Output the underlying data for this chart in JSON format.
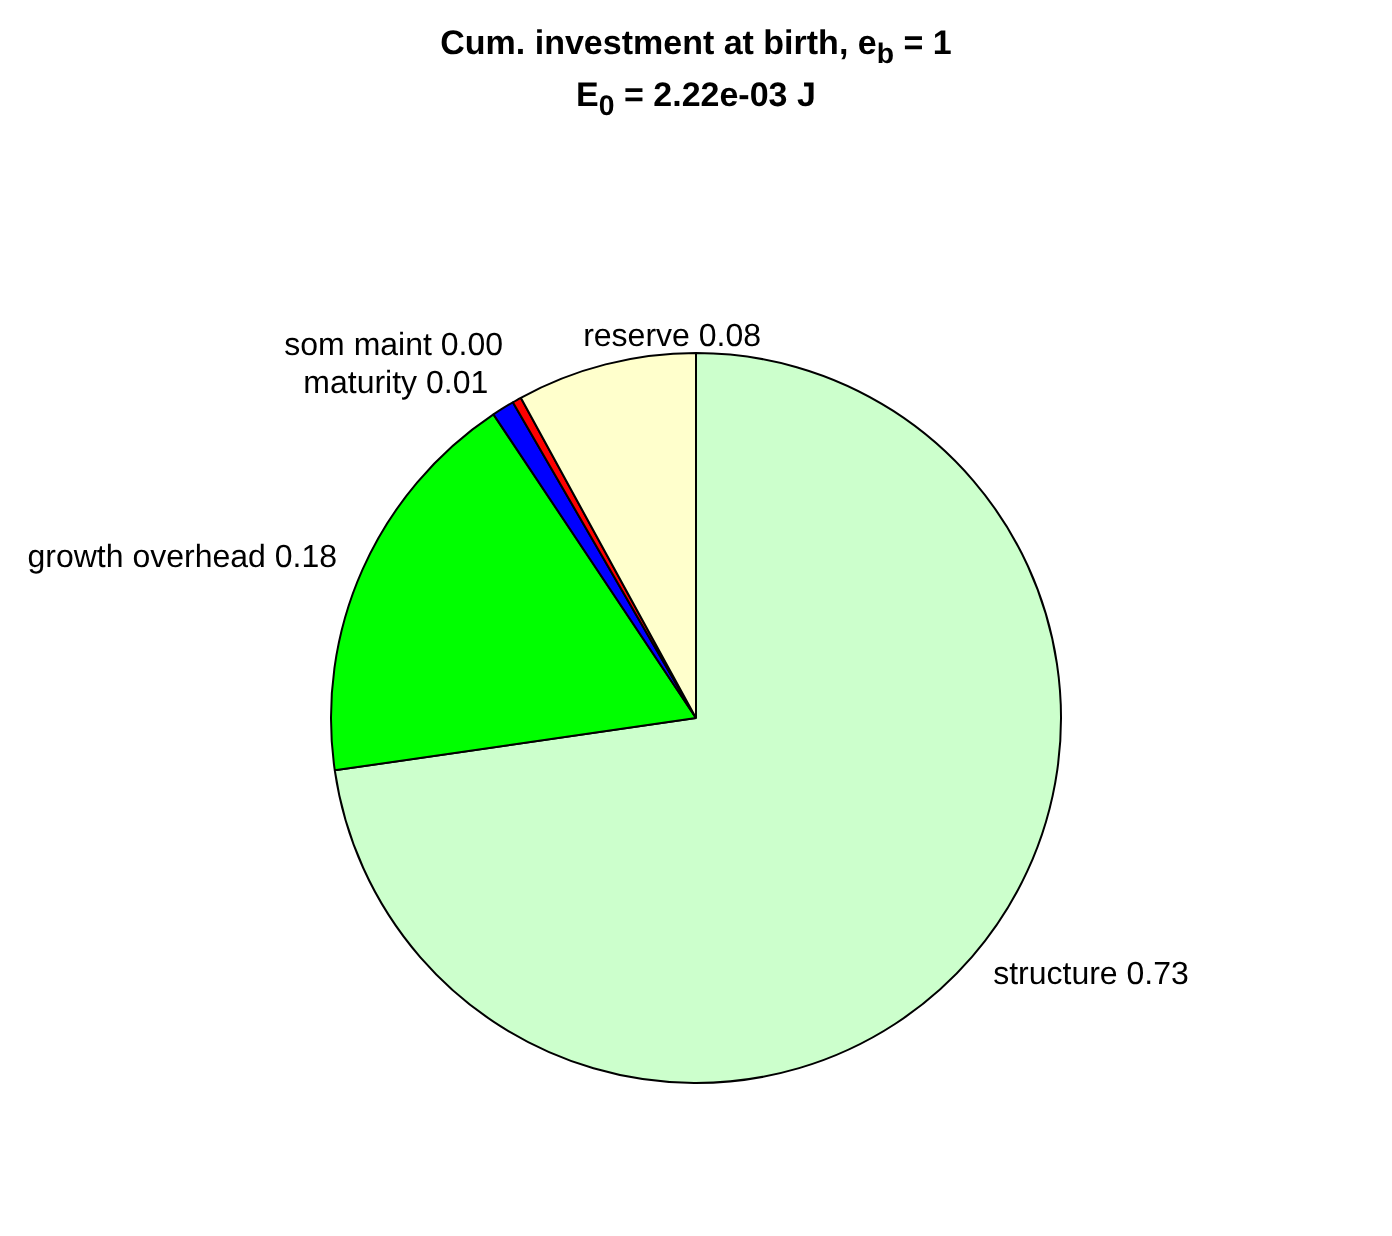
{
  "chart_data": {
    "type": "pie",
    "title": "Cum. investment at birth, e$_{b}$ = 1",
    "subtitle": "E$_{0}$ = 2.22e-03 J",
    "categories": [
      "structure",
      "growth overhead",
      "maturity",
      "som maint",
      "reserve"
    ],
    "values": [
      0.73,
      0.18,
      0.01,
      0.004,
      0.08
    ],
    "value_labels": [
      "0.73",
      "0.18",
      "0.01",
      "0.00",
      "0.08"
    ],
    "colors": [
      "#ccffcc",
      "#00ff00",
      "#0000ff",
      "#ff0000",
      "#ffffcc"
    ],
    "legend": false
  }
}
